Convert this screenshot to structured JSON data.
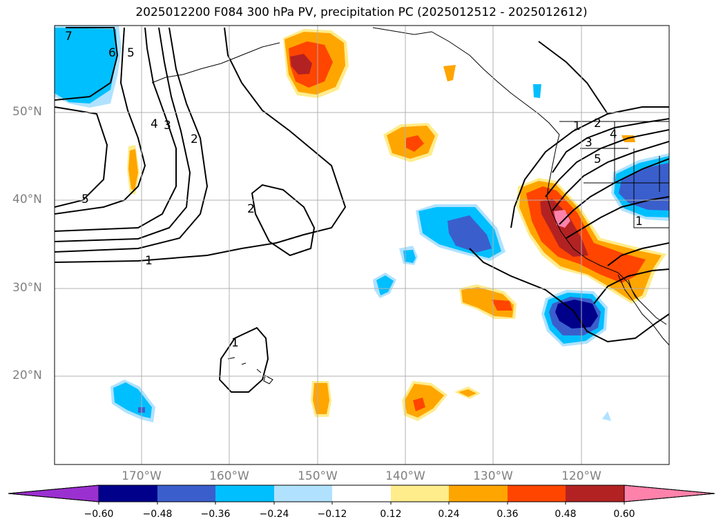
{
  "title": "2025012200 F084 300 hPa PV, precipitation PC (2025012512 - 2025012612)",
  "axes": {
    "lat_labels": [
      "50°N",
      "40°N",
      "30°N",
      "20°N"
    ],
    "lon_labels": [
      "170°W",
      "160°W",
      "150°W",
      "140°W",
      "130°W",
      "120°W"
    ]
  },
  "colorbar": {
    "ticks": [
      "−0.60",
      "−0.48",
      "−0.36",
      "−0.24",
      "−0.12",
      "0.12",
      "0.24",
      "0.36",
      "0.48",
      "0.60"
    ],
    "colors": [
      "#9b30d0",
      "#00008b",
      "#3a5fcd",
      "#00bfff",
      "#b0e2ff",
      "#ffffff",
      "#ffec8b",
      "#ffa500",
      "#ff4500",
      "#b22222",
      "#ff82ab"
    ]
  },
  "contour_labels": [
    "7",
    "6",
    "5",
    "4",
    "3",
    "2",
    "5",
    "2",
    "1",
    "1",
    "1",
    "2",
    "3",
    "4",
    "5",
    "1"
  ]
}
